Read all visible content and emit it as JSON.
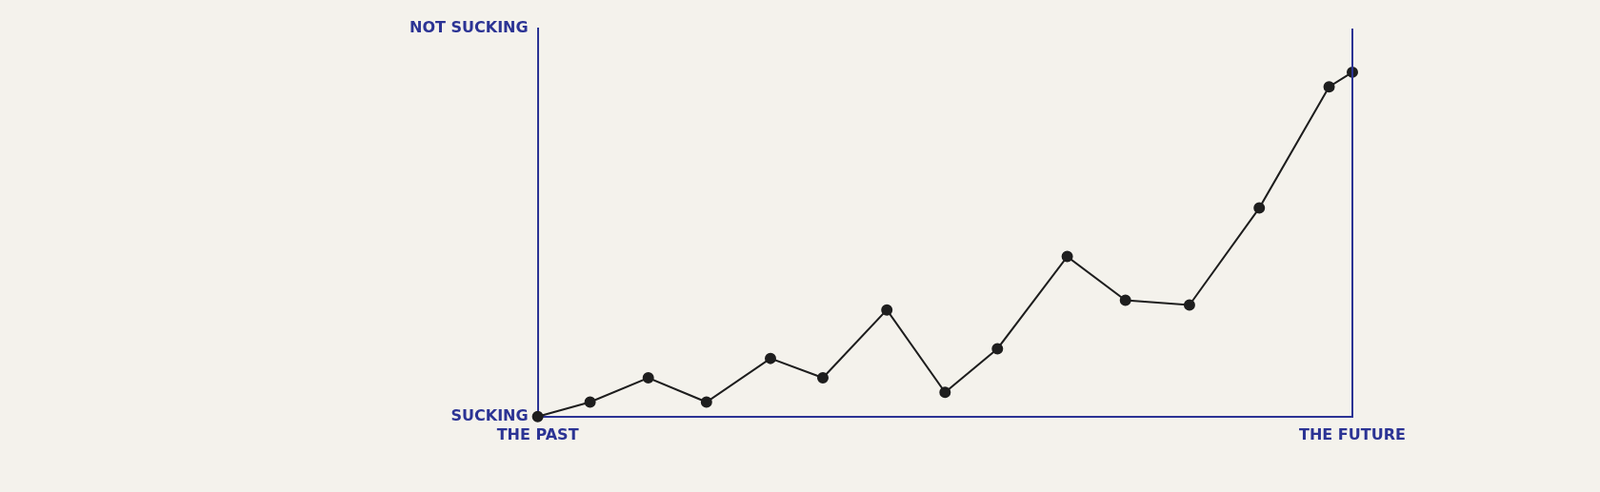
{
  "chart_data": {
    "type": "line",
    "x": [
      0,
      0.9,
      1.9,
      2.9,
      4.0,
      4.9,
      6.0,
      7.0,
      7.9,
      9.1,
      10.1,
      11.2,
      12.4,
      13.6,
      14.0
    ],
    "values": [
      0,
      0.3,
      0.8,
      0.3,
      1.2,
      0.8,
      2.2,
      0.5,
      1.4,
      3.3,
      2.4,
      2.3,
      4.3,
      6.8,
      7.1
    ],
    "color": "#1e1e1e",
    "marker": "circle",
    "line_style": "solid",
    "xlim": [
      0,
      14
    ],
    "ylim": [
      0,
      8
    ],
    "xticks": [
      {
        "value": 0,
        "label": "THE PAST"
      },
      {
        "value": 14,
        "label": "THE FUTURE"
      }
    ],
    "yticks": [
      {
        "value": 0,
        "label": "SUCKING"
      },
      {
        "value": 8,
        "label": "NOT SUCKING"
      }
    ],
    "grid": false
  }
}
